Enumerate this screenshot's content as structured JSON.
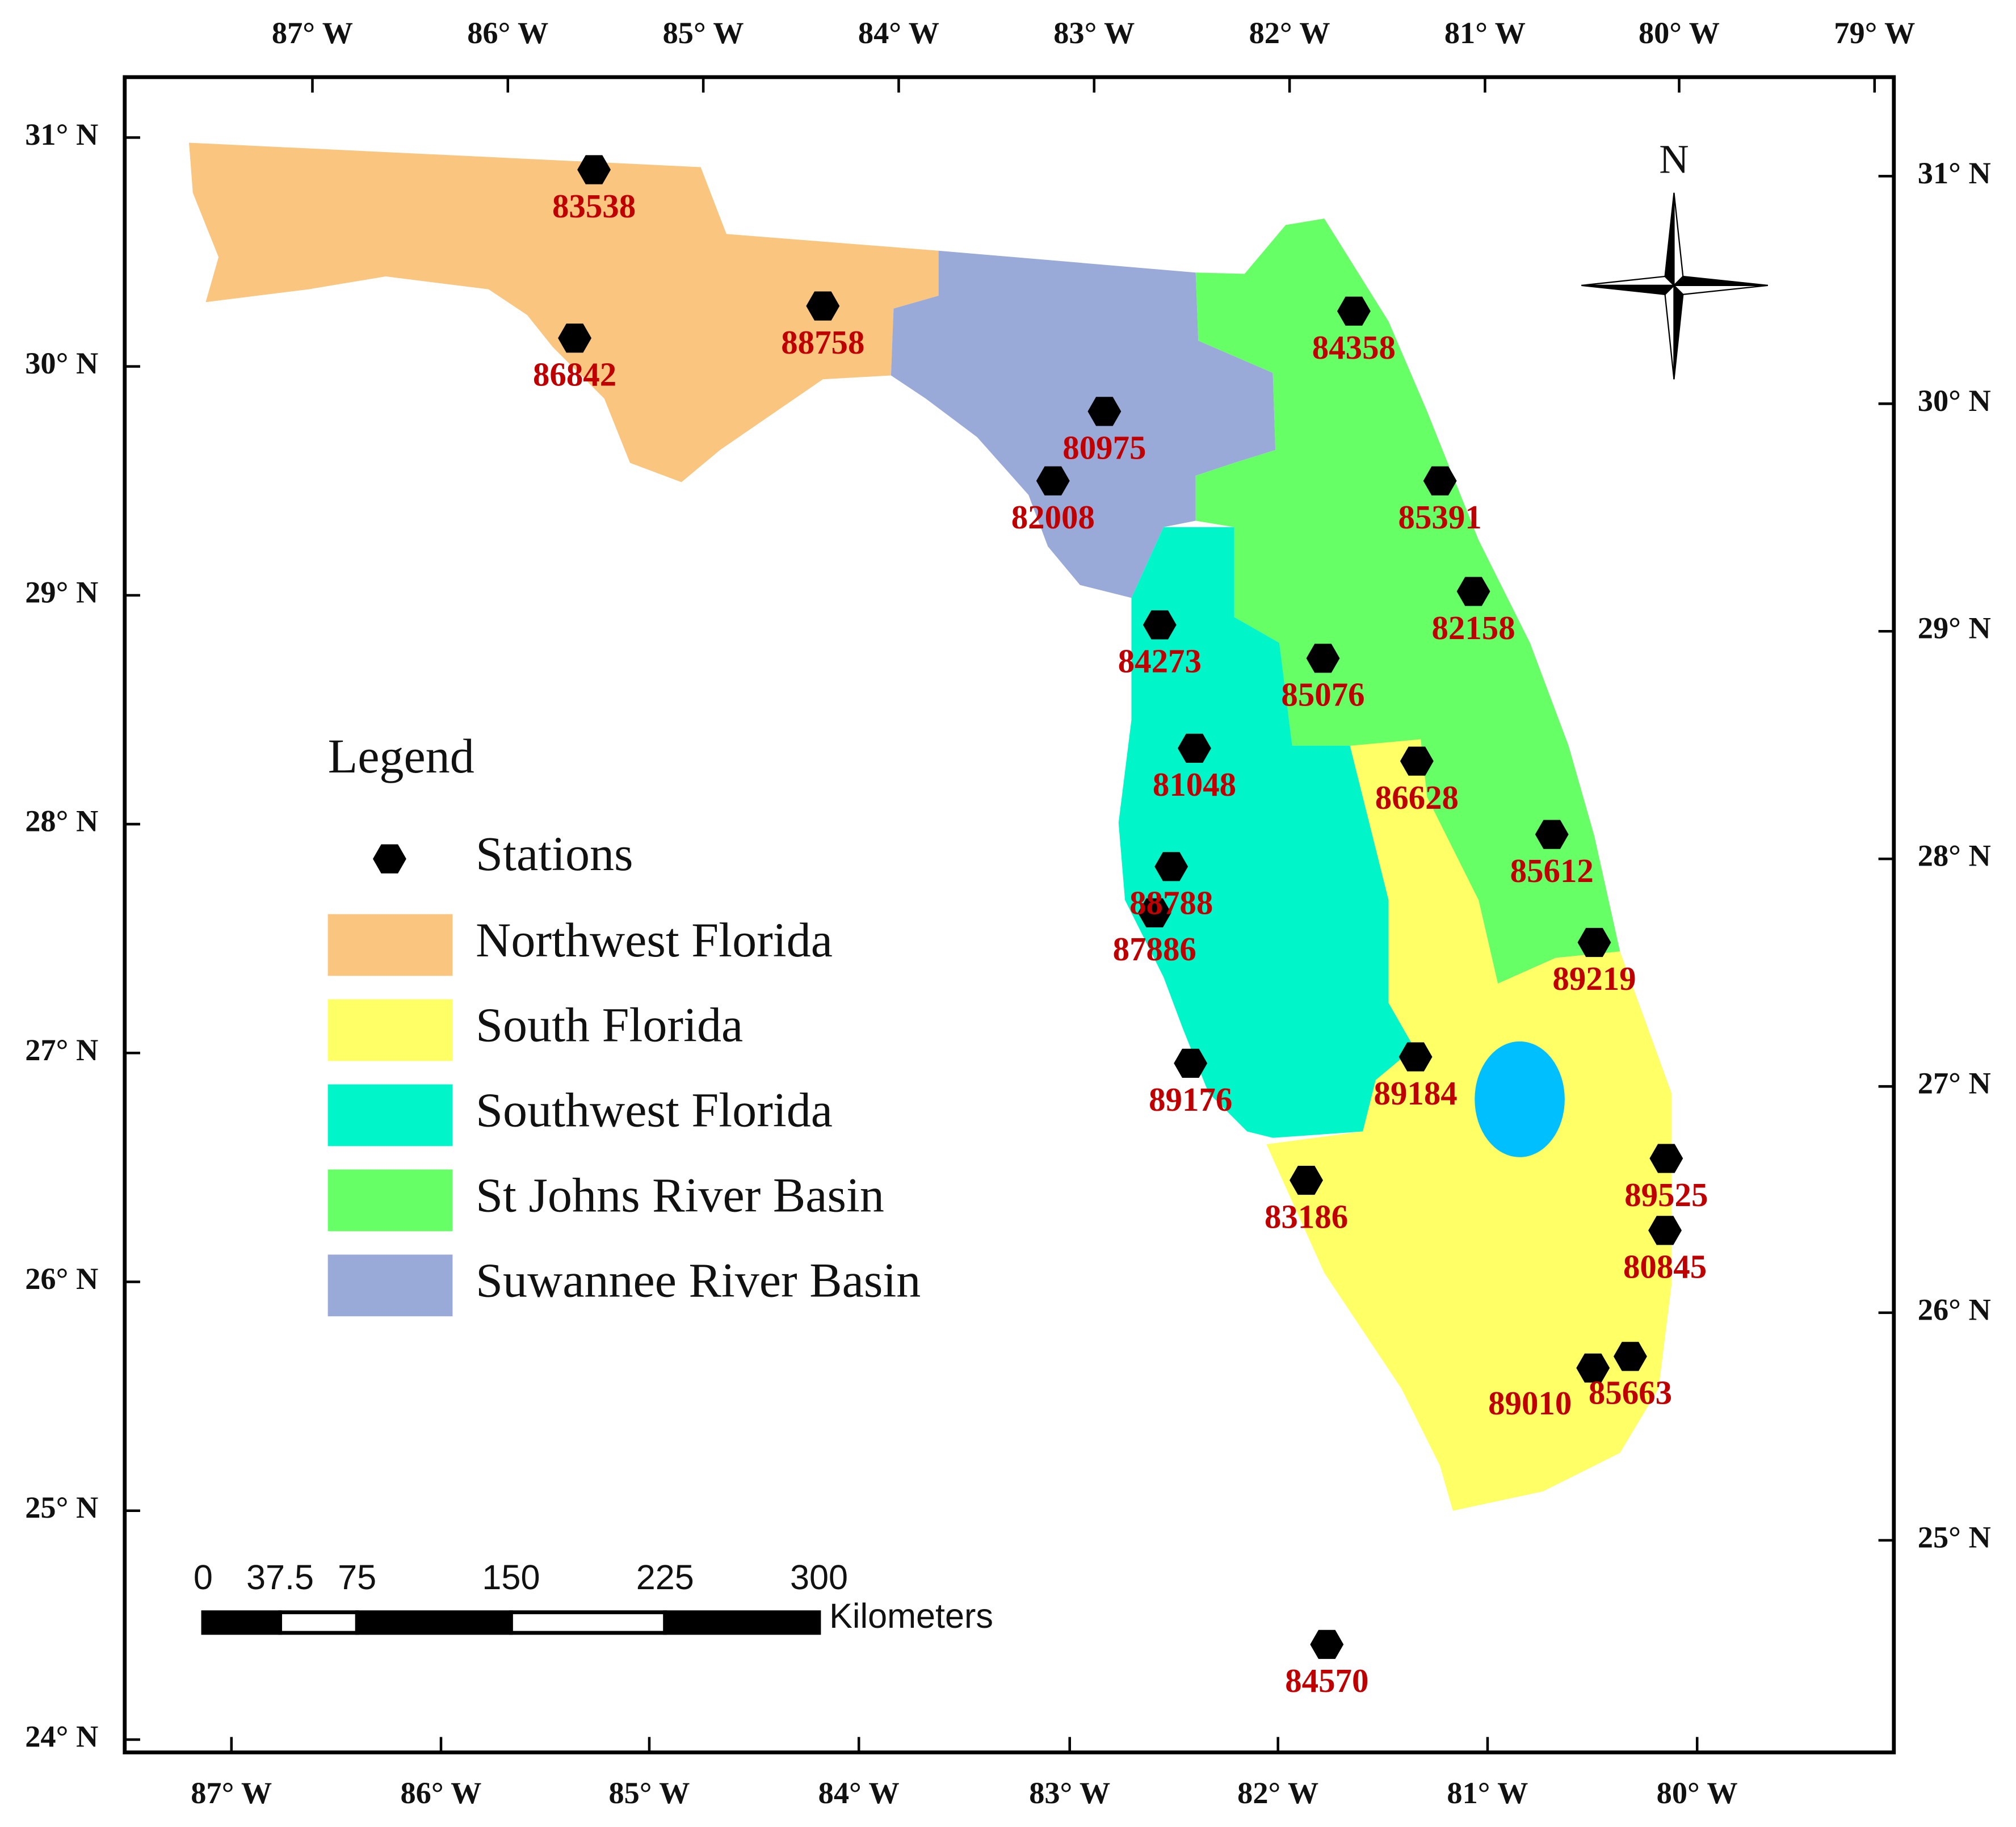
{
  "axes": {
    "top": [
      "87° W",
      "86° W",
      "85° W",
      "84° W",
      "83° W",
      "82° W",
      "81° W",
      "80° W",
      "79° W"
    ],
    "bottom": [
      "87° W",
      "86° W",
      "85° W",
      "84° W",
      "83° W",
      "82° W",
      "81° W",
      "80° W"
    ],
    "left": [
      "31° N",
      "30° N",
      "29° N",
      "28° N",
      "27° N",
      "26° N",
      "25° N",
      "24° N"
    ],
    "right": [
      "31° N",
      "30° N",
      "29° N",
      "28° N",
      "27° N",
      "26° N",
      "25° N"
    ]
  },
  "north": "N",
  "legend": {
    "title": "Legend",
    "stations": "Stations",
    "regions": [
      "Northwest Florida",
      "South Florida",
      "Southwest Florida",
      "St Johns River Basin",
      "Suwannee River Basin"
    ]
  },
  "stations": [
    "83538",
    "88758",
    "86842",
    "80975",
    "82008",
    "84358",
    "85391",
    "82158",
    "84273",
    "85076",
    "81048",
    "86628",
    "85612",
    "88788",
    "87886",
    "89219",
    "89176",
    "89184",
    "89525",
    "80845",
    "83186",
    "89010",
    "85663",
    "84570"
  ],
  "scale_bar": {
    "ticks": [
      0,
      37.5,
      75,
      150,
      225,
      300
    ],
    "unit": "Kilometers"
  }
}
